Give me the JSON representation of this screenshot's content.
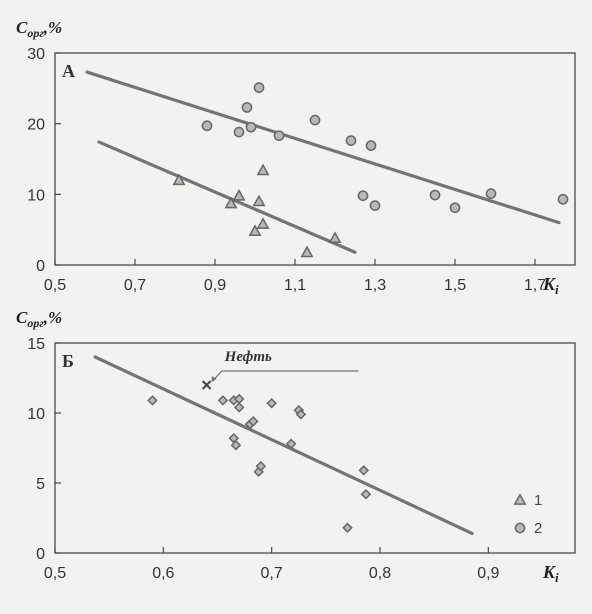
{
  "chart_data": [
    {
      "type": "scatter",
      "panel_label": "А",
      "ylabel_main": "C",
      "ylabel_sub": "орг",
      "ylabel_unit": ",%",
      "xlabel_main": "K",
      "xlabel_sub": "i",
      "xlim": [
        0.5,
        1.8
      ],
      "ylim": [
        0,
        30
      ],
      "x_ticks": [
        0.5,
        0.7,
        0.9,
        1.1,
        1.3,
        1.5,
        1.7
      ],
      "x_tick_labels": [
        "0,5",
        "0,7",
        "0,9",
        "1,1",
        "1,3",
        "1,5",
        "1,7"
      ],
      "y_ticks": [
        0,
        10,
        20,
        30
      ],
      "y_tick_labels": [
        "0",
        "10",
        "20",
        "30"
      ],
      "series": [
        {
          "name": "1",
          "marker": "triangle",
          "points": [
            [
              0.81,
              12.0
            ],
            [
              0.94,
              8.7
            ],
            [
              0.96,
              9.8
            ],
            [
              1.0,
              4.8
            ],
            [
              1.01,
              9.0
            ],
            [
              1.02,
              13.4
            ],
            [
              1.02,
              5.8
            ],
            [
              1.13,
              1.8
            ],
            [
              1.2,
              3.8
            ]
          ]
        },
        {
          "name": "2",
          "marker": "circle",
          "points": [
            [
              0.88,
              19.7
            ],
            [
              0.96,
              18.8
            ],
            [
              0.98,
              22.3
            ],
            [
              0.99,
              19.5
            ],
            [
              1.01,
              25.1
            ],
            [
              1.06,
              18.3
            ],
            [
              1.15,
              20.5
            ],
            [
              1.24,
              17.6
            ],
            [
              1.27,
              9.8
            ],
            [
              1.29,
              16.9
            ],
            [
              1.3,
              8.4
            ],
            [
              1.45,
              9.9
            ],
            [
              1.5,
              8.1
            ],
            [
              1.59,
              10.1
            ],
            [
              1.77,
              9.3
            ]
          ]
        }
      ],
      "trend_lines": [
        {
          "from": [
            0.58,
            27.3
          ],
          "to": [
            1.76,
            6.0
          ]
        },
        {
          "from": [
            0.61,
            17.4
          ],
          "to": [
            1.25,
            1.8
          ]
        }
      ]
    },
    {
      "type": "scatter",
      "panel_label": "Б",
      "ylabel_main": "C",
      "ylabel_sub": "орг",
      "ylabel_unit": ",%",
      "xlabel_main": "K",
      "xlabel_sub": "i",
      "xlim": [
        0.5,
        0.98
      ],
      "ylim": [
        0,
        15
      ],
      "x_ticks": [
        0.5,
        0.6,
        0.7,
        0.8,
        0.9
      ],
      "x_tick_labels": [
        "0,5",
        "0,6",
        "0,7",
        "0,8",
        "0,9"
      ],
      "y_ticks": [
        0,
        5,
        10,
        15
      ],
      "y_tick_labels": [
        "0",
        "5",
        "10",
        "15"
      ],
      "series": [
        {
          "name": "",
          "marker": "diamond",
          "points": [
            [
              0.59,
              10.9
            ],
            [
              0.655,
              10.9
            ],
            [
              0.665,
              10.9
            ],
            [
              0.67,
              11.0
            ],
            [
              0.67,
              10.4
            ],
            [
              0.665,
              8.2
            ],
            [
              0.667,
              7.7
            ],
            [
              0.68,
              9.2
            ],
            [
              0.683,
              9.4
            ],
            [
              0.688,
              5.8
            ],
            [
              0.69,
              6.2
            ],
            [
              0.7,
              10.7
            ],
            [
              0.718,
              7.8
            ],
            [
              0.725,
              10.2
            ],
            [
              0.727,
              9.9
            ],
            [
              0.77,
              1.8
            ],
            [
              0.785,
              5.9
            ],
            [
              0.787,
              4.2
            ]
          ]
        },
        {
          "name": "",
          "marker": "cross",
          "points": [
            [
              0.64,
              12.0
            ]
          ]
        }
      ],
      "trend_lines": [
        {
          "from": [
            0.537,
            14.0
          ],
          "to": [
            0.885,
            1.4
          ]
        }
      ],
      "annotation": {
        "text": "Нефть",
        "point": [
          0.64,
          12.0
        ]
      }
    }
  ],
  "legend": {
    "items": [
      {
        "marker": "triangle",
        "label": "1"
      },
      {
        "marker": "circle",
        "label": "2"
      }
    ]
  },
  "colors": {
    "background": "#f2f2f1",
    "axis": "#4a4a4a",
    "trend": "#747474",
    "marker_stroke": "#666666",
    "marker_fill": "#b8b8b8",
    "text": "#333333"
  }
}
